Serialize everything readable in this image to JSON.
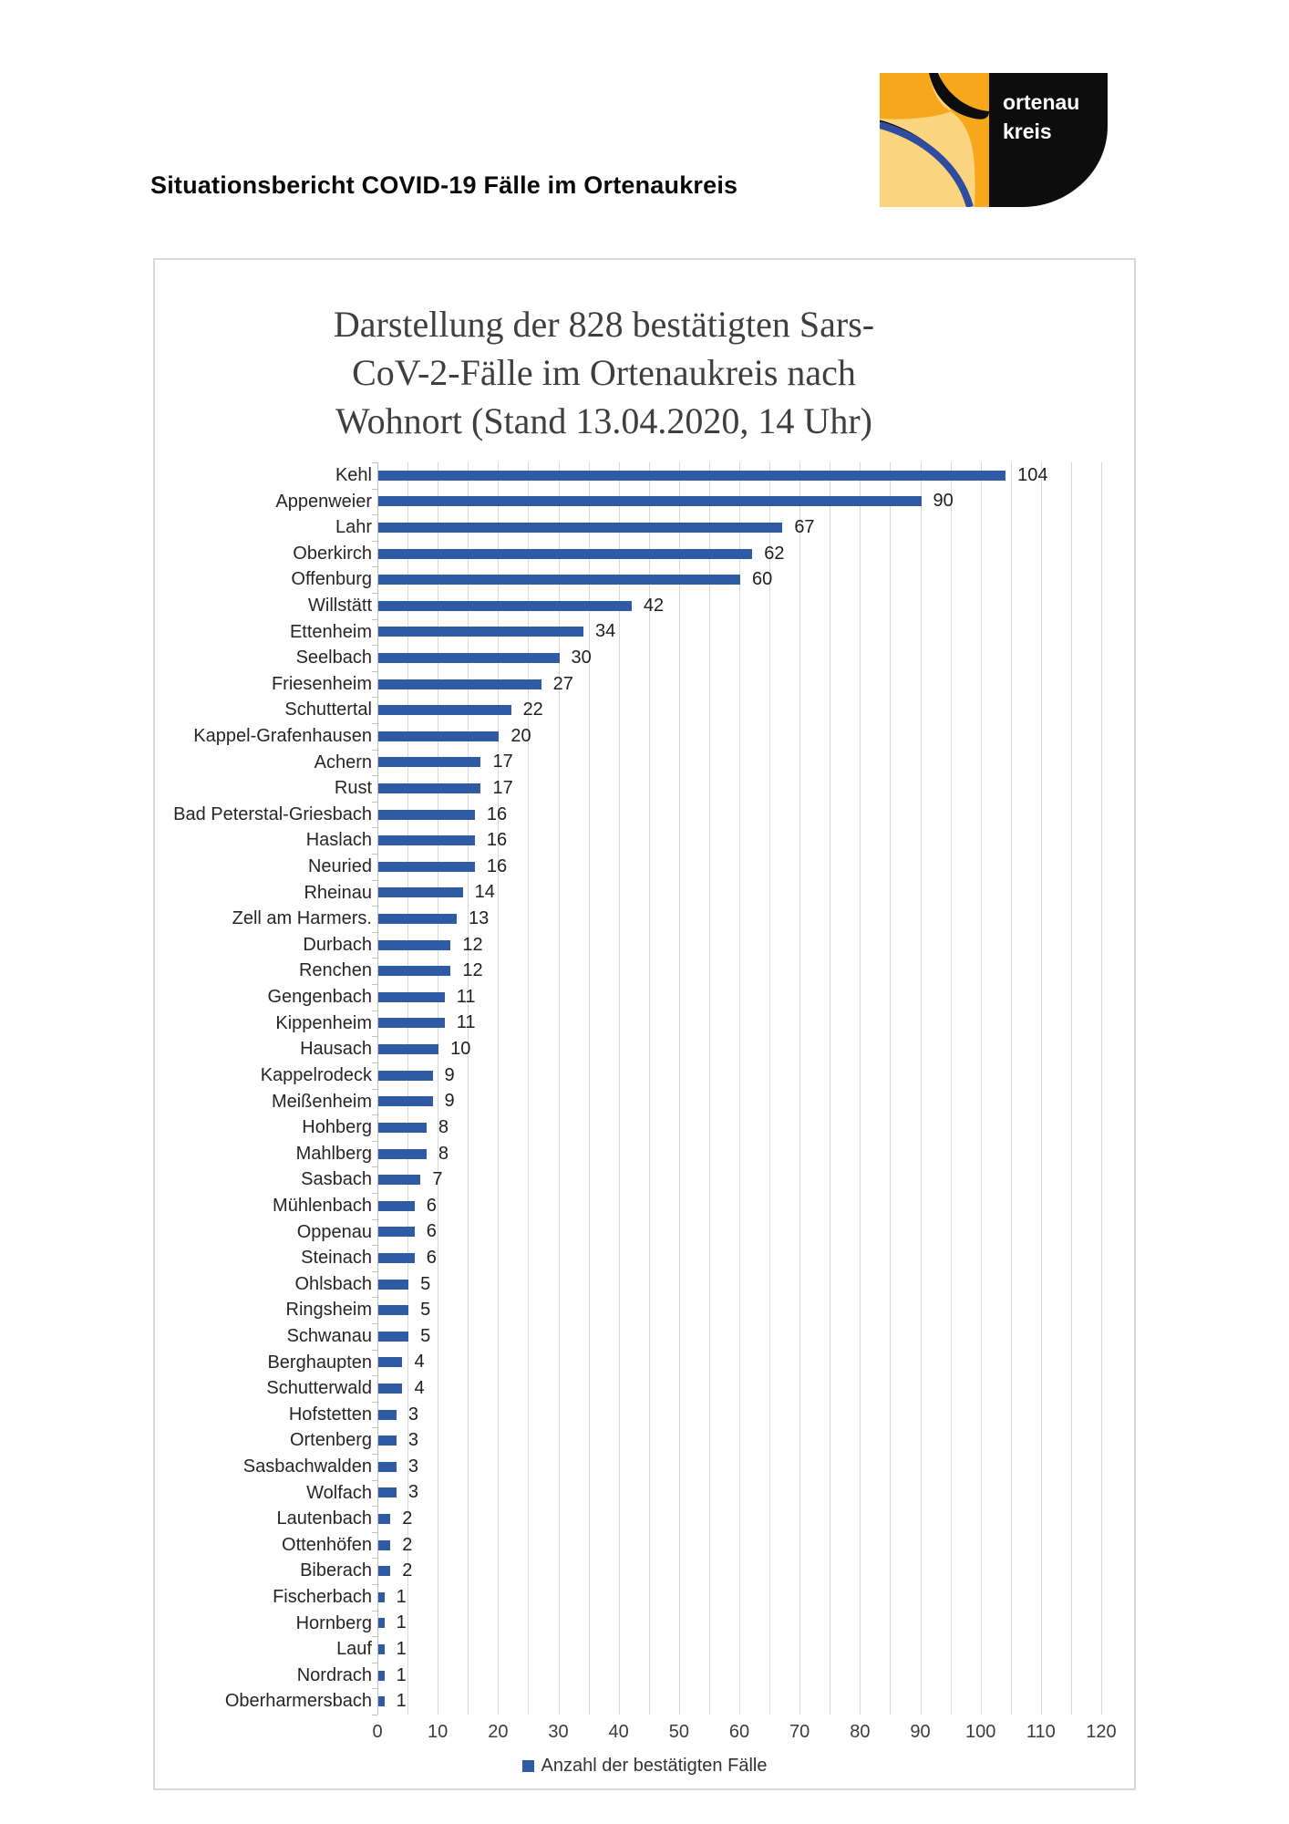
{
  "page": {
    "header_title": "Situationsbericht COVID-19 Fälle im Ortenaukreis",
    "logo": {
      "line1": "ortenau",
      "line2": "kreis",
      "colors": {
        "light_yellow": "#fbd480",
        "orange": "#f6a71c",
        "black": "#0d0d0d",
        "blue": "#2f4c9e"
      }
    }
  },
  "chart_data": {
    "type": "bar",
    "orientation": "horizontal",
    "title": "Darstellung der 828 bestätigten Sars-\nCoV-2-Fälle im Ortenaukreis nach\nWohnort (Stand 13.04.2020, 14 Uhr)",
    "legend": "Anzahl der bestätigten Fälle",
    "legend_position": "bottom",
    "bar_color": "#2e5ba4",
    "grid": true,
    "grid_step": 5,
    "xlim": [
      0,
      120
    ],
    "x_ticks": [
      0,
      10,
      20,
      30,
      40,
      50,
      60,
      70,
      80,
      90,
      100,
      110,
      120
    ],
    "xlabel": "",
    "ylabel": "",
    "data_labels": true,
    "categories": [
      "Kehl",
      "Appenweier",
      "Lahr",
      "Oberkirch",
      "Offenburg",
      "Willstätt",
      "Ettenheim",
      "Seelbach",
      "Friesenheim",
      "Schuttertal",
      "Kappel-Grafenhausen",
      "Achern",
      "Rust",
      "Bad Peterstal-Griesbach",
      "Haslach",
      "Neuried",
      "Rheinau",
      "Zell am Harmers.",
      "Durbach",
      "Renchen",
      "Gengenbach",
      "Kippenheim",
      "Hausach",
      "Kappelrodeck",
      "Meißenheim",
      "Hohberg",
      "Mahlberg",
      "Sasbach",
      "Mühlenbach",
      "Oppenau",
      "Steinach",
      "Ohlsbach",
      "Ringsheim",
      "Schwanau",
      "Berghaupten",
      "Schutterwald",
      "Hofstetten",
      "Ortenberg",
      "Sasbachwalden",
      "Wolfach",
      "Lautenbach",
      "Ottenhöfen",
      "Biberach",
      "Fischerbach",
      "Hornberg",
      "Lauf",
      "Nordrach",
      "Oberharmersbach"
    ],
    "values": [
      104,
      90,
      67,
      62,
      60,
      42,
      34,
      30,
      27,
      22,
      20,
      17,
      17,
      16,
      16,
      16,
      14,
      13,
      12,
      12,
      11,
      11,
      10,
      9,
      9,
      8,
      8,
      7,
      6,
      6,
      6,
      5,
      5,
      5,
      4,
      4,
      3,
      3,
      3,
      3,
      2,
      2,
      2,
      1,
      1,
      1,
      1,
      1
    ],
    "total": 828
  }
}
